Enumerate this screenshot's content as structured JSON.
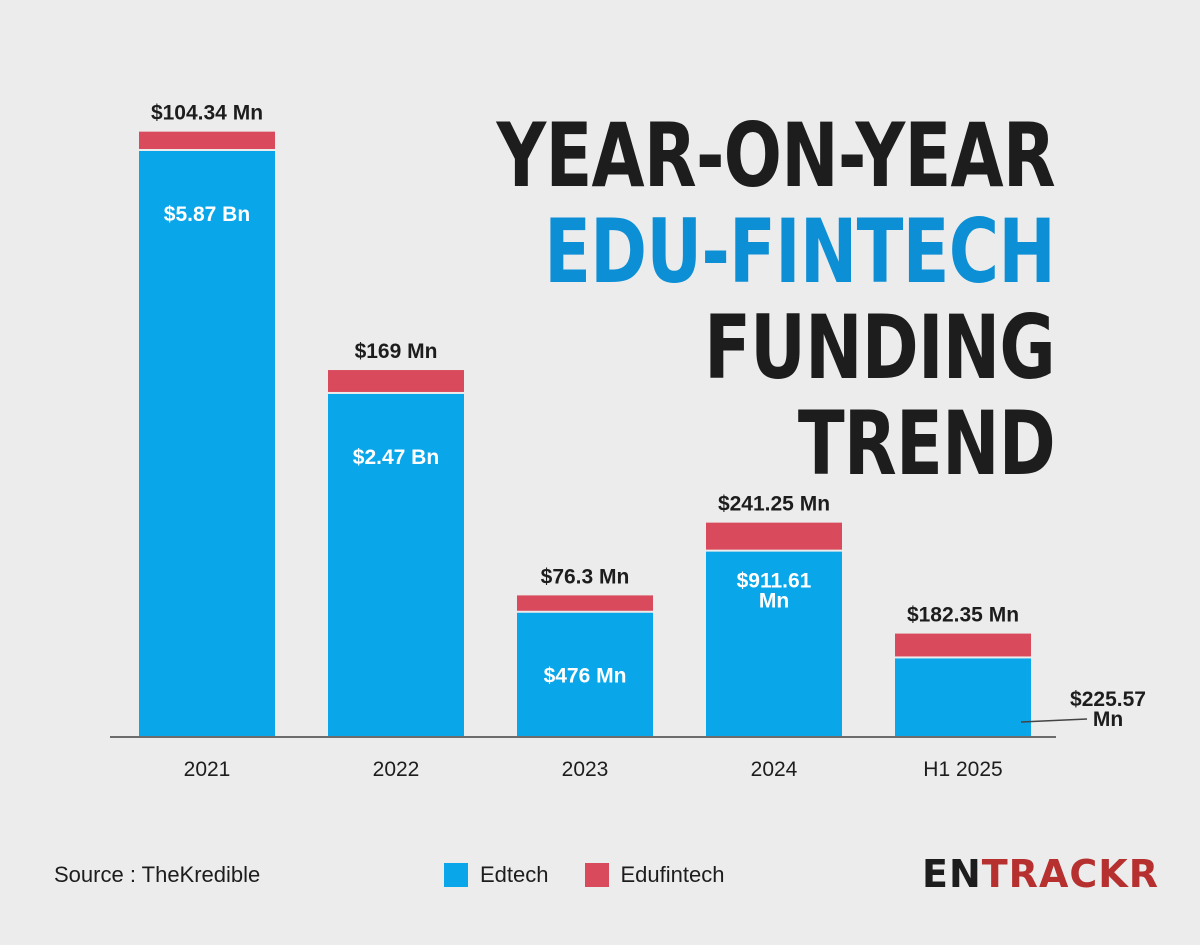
{
  "title": {
    "line1": "YEAR-ON-YEAR",
    "line2": "EDU-FINTECH",
    "line3": "FUNDING",
    "line4": "TREND"
  },
  "source": "Source : TheKredible",
  "brand": {
    "part1": "EN",
    "part2": "TRACKR"
  },
  "colors": {
    "edtech": "#0aa6ea",
    "edufintech": "#d94a5c",
    "title_accent": "#0d8fd6"
  },
  "chart_data": {
    "type": "bar",
    "stacked": true,
    "categories": [
      "2021",
      "2022",
      "2023",
      "2024",
      "H1 2025"
    ],
    "series": [
      {
        "name": "Edtech",
        "values": [
          5870,
          2470,
          476,
          911.61,
          225.57
        ],
        "labels": [
          "$5.87 Bn",
          "$2.47 Bn",
          "$476 Mn",
          "$911.61 Mn",
          "$225.57 Mn"
        ]
      },
      {
        "name": "Edufintech",
        "values": [
          104.34,
          169,
          76.3,
          241.25,
          182.35
        ],
        "labels": [
          "$104.34 Mn",
          "$169 Mn",
          "$76.3 Mn",
          "$241.25 Mn",
          "$182.35 Mn"
        ]
      }
    ],
    "legend": [
      "Edtech",
      "Edufintech"
    ],
    "legend_position": "bottom",
    "ylabel": "",
    "xlabel": ""
  }
}
